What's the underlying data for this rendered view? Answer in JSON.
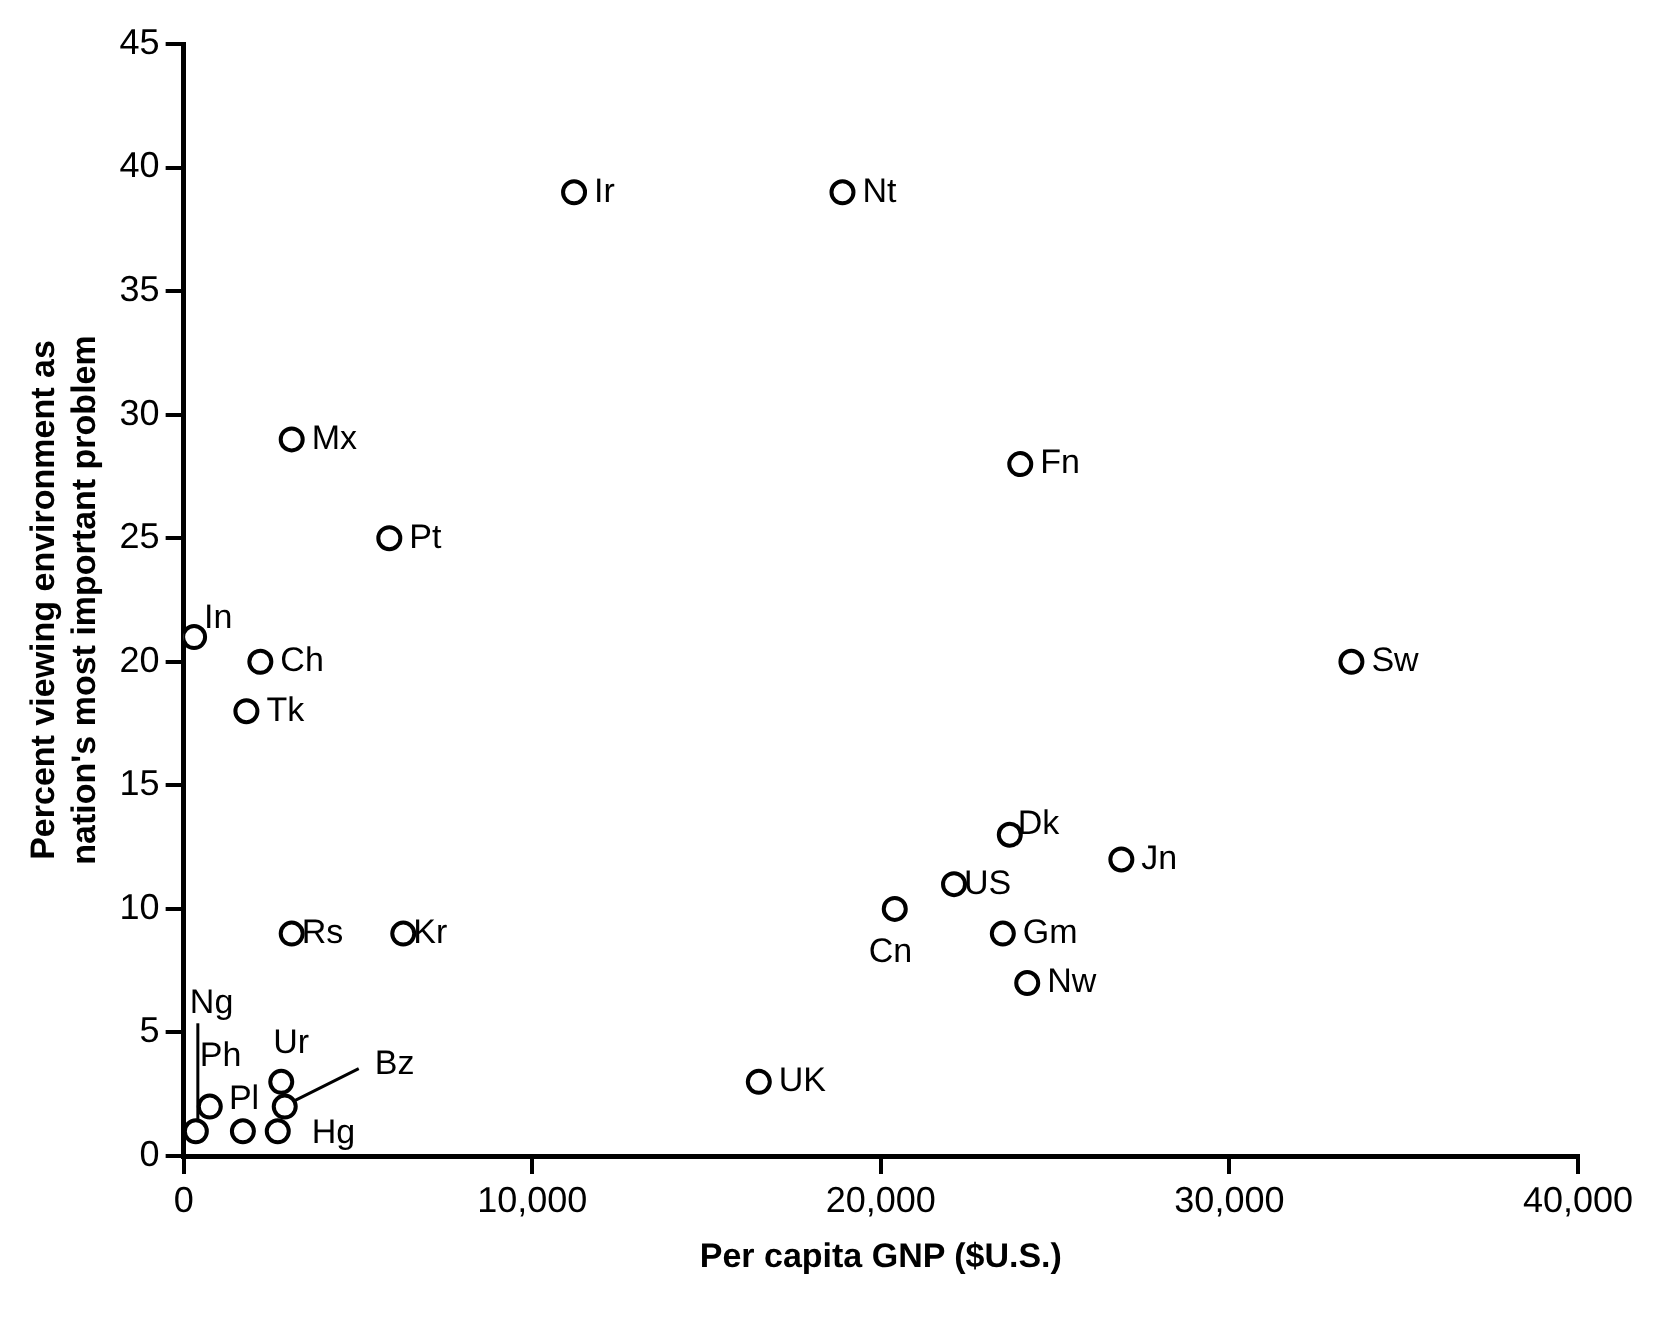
{
  "chart_data": {
    "type": "scatter",
    "xlabel": "Per capita GNP ($U.S.)",
    "ylabel": "Percent viewing environment as nation's most important problem",
    "xlim": [
      0,
      40000
    ],
    "xticks": [
      0,
      {
        "value": 10000,
        "label": "10,000"
      },
      {
        "value": 20000,
        "label": "20,000"
      },
      {
        "value": 30000,
        "label": "30,000"
      },
      {
        "value": 40000,
        "label": "40,000"
      }
    ],
    "ylim": [
      0,
      45
    ],
    "yticks": [
      0,
      5,
      10,
      15,
      20,
      25,
      30,
      35,
      40,
      45
    ],
    "grid": false,
    "legend": false,
    "marker": "circle",
    "series": [
      {
        "color": "#000000",
        "x": [
          11200,
          18900,
          3100,
          5900,
          24000,
          33500,
          300,
          2200,
          1800,
          23700,
          26900,
          22100,
          20400,
          23500,
          24200,
          3100,
          6300,
          16500,
          2800,
          2900,
          350,
          750,
          1700,
          2700
        ],
        "values": [
          39,
          39,
          29,
          25,
          28,
          20,
          21,
          20,
          18,
          13,
          12,
          11,
          10,
          9,
          7,
          9,
          9,
          3,
          3,
          2,
          1,
          2,
          1,
          1
        ],
        "value_labels": [
          "Ir",
          "Nt",
          "Mx",
          "Pt",
          "Fn",
          "Sw",
          "In",
          "Ch",
          "Tk",
          "Dk",
          "Jn",
          "US",
          "Cn",
          "Gm",
          "Nw",
          "Rs",
          "Kr",
          "UK",
          "Ur",
          "Bz",
          "Ng",
          "Ph",
          "Pl",
          "Hg"
        ]
      }
    ]
  }
}
